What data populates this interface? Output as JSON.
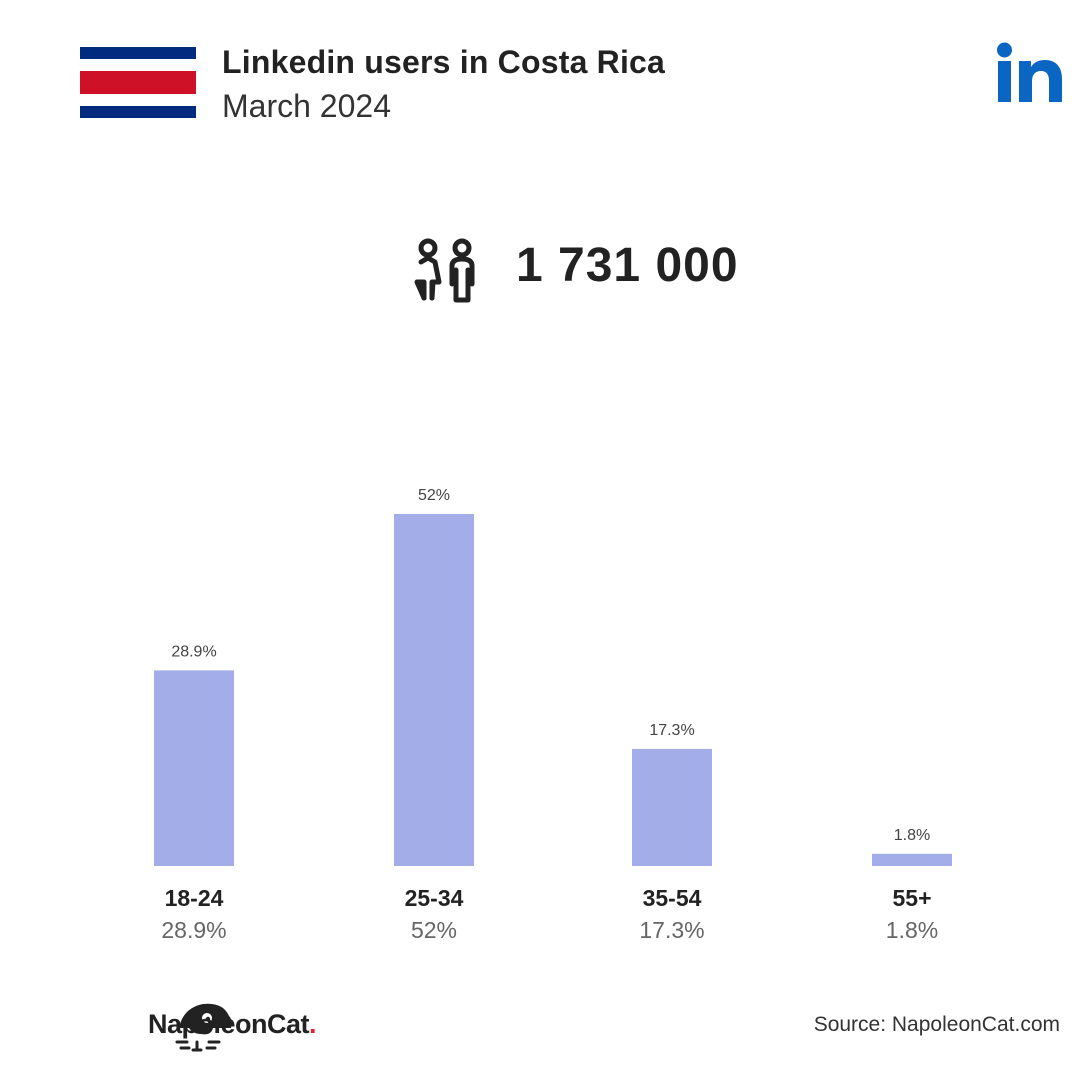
{
  "header": {
    "title": "Linkedin users in Costa Rica",
    "subtitle": "March 2024"
  },
  "flag": {
    "name": "costa-rica-flag",
    "colors": [
      "#002b7f",
      "#ffffff",
      "#ce1126",
      "#ffffff",
      "#002b7f"
    ]
  },
  "logo": {
    "icon": "linkedin-icon",
    "text": "in",
    "color": "#0a66c2"
  },
  "summary": {
    "icon": "users-icon",
    "total_users": "1 731 000"
  },
  "chart_data": {
    "type": "bar",
    "categories": [
      "18-24",
      "25-34",
      "35-54",
      "55+"
    ],
    "values": [
      28.9,
      52,
      17.3,
      1.8
    ],
    "value_labels": [
      "28.9%",
      "52%",
      "17.3%",
      "1.8%"
    ],
    "unit": "%",
    "bar_color": "#a3aee8",
    "title": "",
    "xlabel": "",
    "ylabel": "",
    "ylim": [
      0,
      52
    ],
    "grid": false
  },
  "footer": {
    "brand": "NapoleonCat",
    "brand_dot": ".",
    "source": "Source: NapoleonCat.com"
  }
}
